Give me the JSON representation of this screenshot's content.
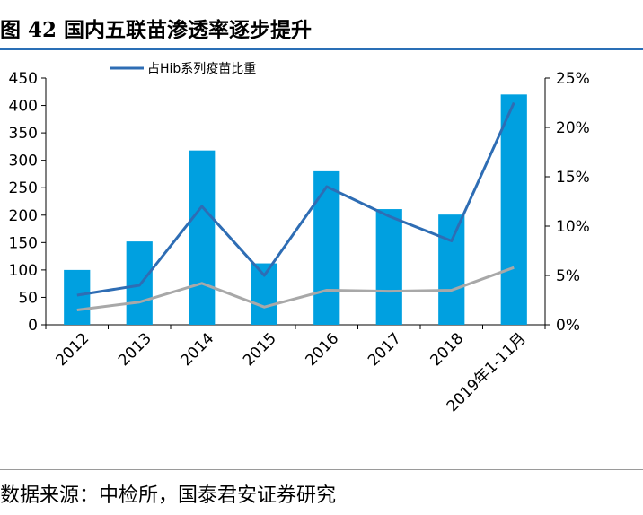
{
  "figure": {
    "label": "图",
    "number": "42",
    "title": "国内五联苗渗透率逐步提升"
  },
  "source": "数据来源：中检所，国泰君安证券研究",
  "chart_data": {
    "type": "bar",
    "categories": [
      "2012",
      "2013",
      "2014",
      "2015",
      "2016",
      "2017",
      "2018",
      "2019年1-11月"
    ],
    "series": [
      {
        "name": "",
        "type": "bar",
        "axis": "left",
        "color": "#00a0e0",
        "values": [
          100,
          152,
          318,
          112,
          280,
          211,
          201,
          420
        ]
      },
      {
        "name": "占Hib系列疫苗比重",
        "type": "line",
        "axis": "right",
        "color": "#2e6db4",
        "values": [
          3.0,
          4.0,
          12.0,
          5.0,
          14.0,
          11.0,
          8.5,
          22.5
        ]
      },
      {
        "name": "",
        "type": "line",
        "axis": "right",
        "color": "#a8a8a8",
        "values": [
          1.5,
          2.3,
          4.2,
          1.8,
          3.5,
          3.4,
          3.5,
          5.8
        ]
      }
    ],
    "y_left": {
      "range": [
        0,
        450
      ],
      "ticks": [
        0,
        50,
        100,
        150,
        200,
        250,
        300,
        350,
        400,
        450
      ]
    },
    "y_right": {
      "range": [
        0,
        25
      ],
      "ticks": [
        0,
        5,
        10,
        15,
        20,
        25
      ],
      "tick_labels": [
        "0%",
        "5%",
        "10%",
        "15%",
        "20%",
        "25%"
      ]
    },
    "legend_position": "top",
    "grid": false
  }
}
